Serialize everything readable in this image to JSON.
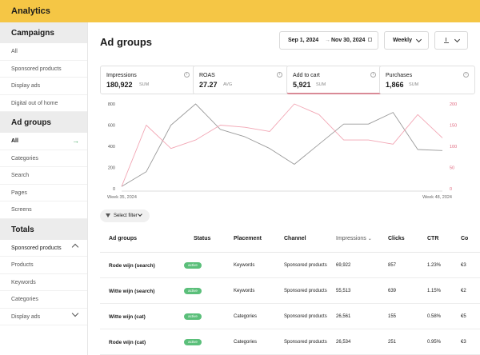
{
  "app": {
    "title": "Analytics"
  },
  "sidebar": {
    "sections": [
      {
        "title": "Campaigns",
        "items": [
          {
            "label": "All"
          },
          {
            "label": "Sponsored products"
          },
          {
            "label": "Display ads"
          },
          {
            "label": "Digital out of home"
          }
        ]
      },
      {
        "title": "Ad groups",
        "items": [
          {
            "label": "All",
            "active": true
          },
          {
            "label": "Categories"
          },
          {
            "label": "Search"
          },
          {
            "label": "Pages"
          },
          {
            "label": "Screens"
          }
        ]
      },
      {
        "title": "Totals",
        "items": [
          {
            "label": "Sponsored products",
            "expanded": true
          },
          {
            "label": "Products"
          },
          {
            "label": "Keywords"
          },
          {
            "label": "Categories"
          },
          {
            "label": "Display ads",
            "collapsed": true
          }
        ]
      }
    ]
  },
  "header": {
    "title": "Ad groups",
    "date_start": "Sep 1, 2024",
    "date_arrow": "→",
    "date_end": "Nov 30, 2024",
    "interval": "Weekly"
  },
  "metrics": [
    {
      "label": "Impressions",
      "value": "180,922",
      "unit": "SUM"
    },
    {
      "label": "ROAS",
      "value": "27.27",
      "unit": "AVG"
    },
    {
      "label": "Add to cart",
      "value": "5,921",
      "unit": "SUM",
      "selected": true
    },
    {
      "label": "Purchases",
      "value": "1,866",
      "unit": "SUM"
    }
  ],
  "chart_data": {
    "type": "line",
    "x": [
      "Week 35, 2024",
      "Week 36, 2024",
      "Week 37, 2024",
      "Week 38, 2024",
      "Week 39, 2024",
      "Week 40, 2024",
      "Week 41, 2024",
      "Week 42, 2024",
      "Week 43, 2024",
      "Week 44, 2024",
      "Week 45, 2024",
      "Week 46, 2024",
      "Week 47, 2024",
      "Week 48, 2024"
    ],
    "x_tick_labels": [
      "Week 35, 2024",
      "Week 48, 2024"
    ],
    "y_left": {
      "ticks": [
        "0",
        "200",
        "400",
        "600",
        "800"
      ],
      "ylim": [
        0,
        800
      ]
    },
    "y_right": {
      "ticks": [
        "0",
        "50",
        "100",
        "150",
        "200"
      ],
      "ylim": [
        0,
        200
      ],
      "color": "#e06a80"
    },
    "series": [
      {
        "axis": "left",
        "color": "#9a9a9a",
        "values": [
          20,
          160,
          600,
          800,
          560,
          490,
          380,
          230,
          420,
          610,
          610,
          720,
          370,
          360
        ]
      },
      {
        "axis": "right",
        "color": "#f2a6b4",
        "values": [
          5,
          150,
          95,
          115,
          150,
          145,
          135,
          200,
          175,
          115,
          115,
          105,
          175,
          120
        ]
      }
    ]
  },
  "filter": {
    "label": "Select filter"
  },
  "table": {
    "columns": [
      "Ad groups",
      "Status",
      "Placement",
      "Channel",
      "Impressions",
      "Clicks",
      "CTR",
      "Co"
    ],
    "rows": [
      [
        "Rode wijn (search)",
        "active",
        "Keywords",
        "Sponsored products",
        "69,922",
        "857",
        "1.23%",
        "€3"
      ],
      [
        "Witte wijn (search)",
        "active",
        "Keywords",
        "Sponsored products",
        "55,513",
        "639",
        "1.15%",
        "€2"
      ],
      [
        "Witte wijn (cat)",
        "active",
        "Categories",
        "Sponsored products",
        "26,561",
        "155",
        "0.58%",
        "€5"
      ],
      [
        "Rode wijn (cat)",
        "active",
        "Categories",
        "Sponsored products",
        "26,534",
        "251",
        "0.95%",
        "€3"
      ]
    ]
  }
}
